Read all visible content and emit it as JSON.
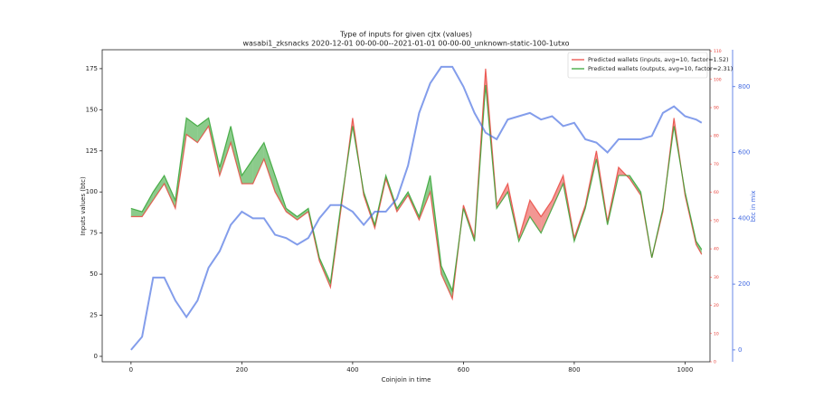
{
  "chart_data": {
    "type": "line",
    "title": "Type of inputs for given cjtx (values)",
    "subtitle": "wasabi1_zksnacks 2020-12-01 00-00-00--2021-01-01 00-00-00_unknown-static-100-1utxo",
    "xlabel": "Coinjoin in time",
    "ylabel": "Inputs values (btc)",
    "y3label": "btc in mix",
    "x": [
      0,
      20,
      40,
      60,
      80,
      100,
      120,
      140,
      160,
      180,
      200,
      220,
      240,
      260,
      280,
      300,
      320,
      340,
      360,
      380,
      400,
      420,
      440,
      460,
      480,
      500,
      520,
      540,
      560,
      580,
      600,
      620,
      640,
      660,
      680,
      700,
      720,
      740,
      760,
      780,
      800,
      820,
      840,
      860,
      880,
      900,
      920,
      940,
      960,
      980,
      1000,
      1020,
      1030
    ],
    "series": [
      {
        "name": "Predicted wallets (inputs, avg=10, factor=1.52)",
        "color": "#e8413a",
        "axis": "y",
        "values": [
          85,
          85,
          95,
          105,
          90,
          135,
          130,
          140,
          110,
          130,
          105,
          105,
          120,
          100,
          88,
          83,
          88,
          58,
          42,
          92,
          145,
          98,
          78,
          108,
          88,
          98,
          83,
          100,
          50,
          35,
          92,
          72,
          175,
          92,
          105,
          72,
          95,
          85,
          95,
          110,
          72,
          92,
          125,
          82,
          115,
          108,
          98,
          60,
          88,
          145,
          98,
          68,
          62
        ]
      },
      {
        "name": "Predicted wallets (outputs, avg=10, factor=2.31)",
        "color": "#2ca02c",
        "axis": "y",
        "values": [
          90,
          88,
          100,
          110,
          95,
          145,
          140,
          145,
          115,
          140,
          110,
          120,
          130,
          110,
          90,
          85,
          90,
          60,
          45,
          95,
          140,
          100,
          80,
          110,
          90,
          100,
          85,
          110,
          55,
          40,
          90,
          70,
          165,
          90,
          100,
          70,
          85,
          75,
          90,
          105,
          70,
          90,
          120,
          80,
          110,
          110,
          100,
          60,
          90,
          140,
          100,
          70,
          65
        ]
      },
      {
        "color": "#4169e1",
        "axis": "y3",
        "values": [
          0,
          40,
          220,
          220,
          150,
          100,
          150,
          250,
          300,
          380,
          420,
          400,
          400,
          350,
          340,
          320,
          340,
          400,
          440,
          440,
          420,
          380,
          420,
          420,
          460,
          560,
          720,
          810,
          860,
          860,
          800,
          720,
          660,
          640,
          700,
          710,
          720,
          700,
          710,
          680,
          690,
          640,
          630,
          600,
          640,
          640,
          640,
          650,
          720,
          740,
          710,
          700,
          690
        ]
      }
    ],
    "xlim": [
      -52,
      1045
    ],
    "xticks": [
      0,
      200,
      400,
      600,
      800,
      1000
    ],
    "ylim": [
      -3.3,
      186.5
    ],
    "yticks": [
      0,
      25,
      50,
      75,
      100,
      125,
      150,
      175
    ],
    "y2lim": [
      0,
      110.5
    ],
    "y2ticks": [
      0,
      10,
      20,
      30,
      40,
      50,
      60,
      70,
      80,
      90,
      100,
      110
    ],
    "y2color": "#e8413a",
    "y3lim": [
      -36,
      912
    ],
    "y3ticks": [
      0,
      200,
      400,
      600,
      800
    ],
    "y3color": "#4169e1",
    "legend": "upper right"
  }
}
